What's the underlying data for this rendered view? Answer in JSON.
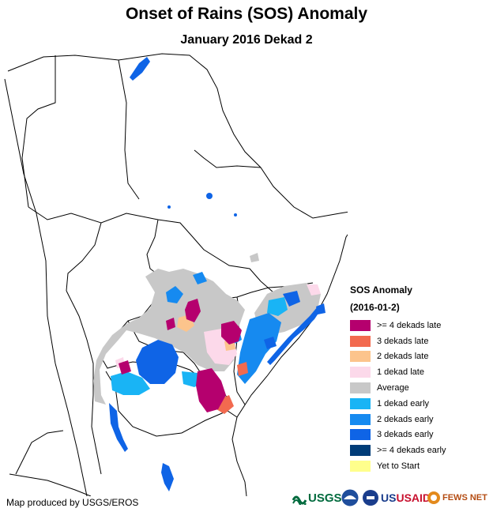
{
  "title": "Onset of Rains (SOS) Anomaly",
  "subtitle": "January 2016 Dekad 2",
  "legend": {
    "title": "SOS Anomaly",
    "period": "(2016-01-2)",
    "items": [
      {
        "label": ">= 4 dekads late",
        "color": "#b5006e"
      },
      {
        "label": "3 dekads late",
        "color": "#f26a4f"
      },
      {
        "label": "2 dekads late",
        "color": "#fcc48c"
      },
      {
        "label": "1 dekad late",
        "color": "#fcd9ea"
      },
      {
        "label": "Average",
        "color": "#c8c8c8"
      },
      {
        "label": "1 dekad early",
        "color": "#19b4f5"
      },
      {
        "label": "2 dekads early",
        "color": "#168af0"
      },
      {
        "label": "3 dekads early",
        "color": "#0f64e6"
      },
      {
        "label": ">= 4 dekads early",
        "color": "#003c78"
      },
      {
        "label": "Yet to Start",
        "color": "#ffff8c"
      }
    ]
  },
  "credit": "Map produced by USGS/EROS",
  "logos": {
    "usgs": "USGS",
    "noaa": "NOAA",
    "usaid": "USAID",
    "fewsnet": "FEWS NET"
  }
}
